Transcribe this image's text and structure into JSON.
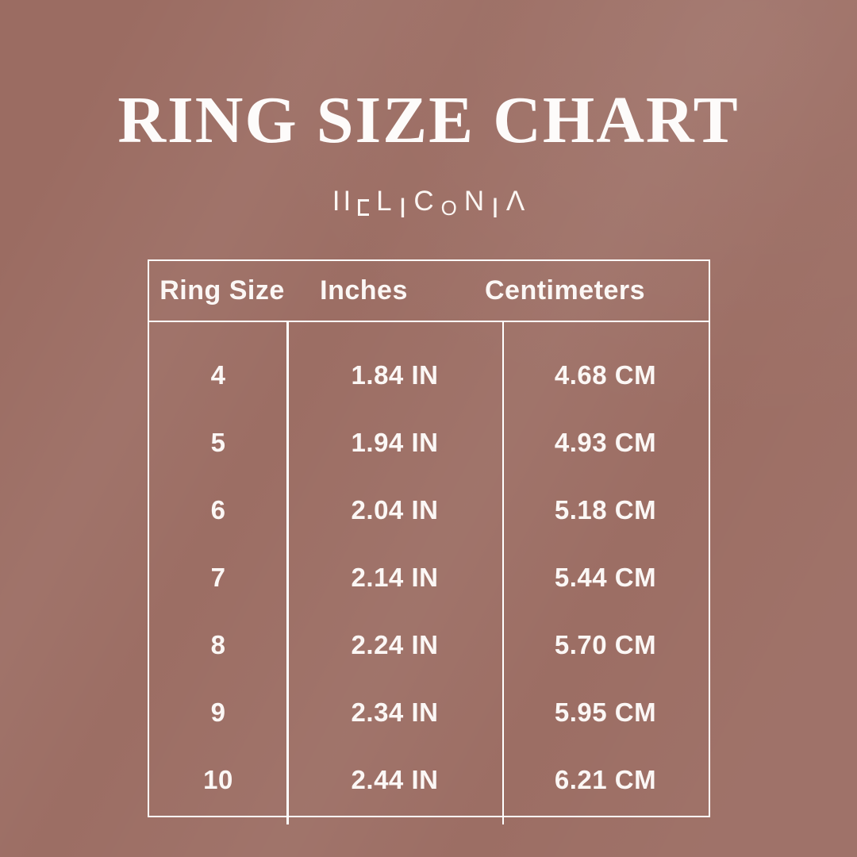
{
  "title": "RING SIZE CHART",
  "brand": {
    "name": "HELICONIA",
    "glyphs": [
      {
        "char": "I",
        "pos": "up",
        "gapAfter": 4
      },
      {
        "char": "I",
        "pos": "up"
      },
      {
        "char": "E",
        "pos": "down",
        "shape": "bracket"
      },
      {
        "char": "L",
        "pos": "up"
      },
      {
        "char": "I",
        "pos": "down"
      },
      {
        "char": "C",
        "pos": "up"
      },
      {
        "char": "O",
        "pos": "down",
        "shape": "small"
      },
      {
        "char": "N",
        "pos": "up"
      },
      {
        "char": "I",
        "pos": "down"
      },
      {
        "char": "Λ",
        "pos": "up"
      }
    ]
  },
  "chart_data": {
    "type": "table",
    "title": "RING SIZE CHART",
    "columns": [
      "Ring Size",
      "Inches",
      "Centimeters"
    ],
    "rows": [
      [
        "4",
        "1.84 IN",
        "4.68 CM"
      ],
      [
        "5",
        "1.94 IN",
        "4.93 CM"
      ],
      [
        "6",
        "2.04 IN",
        "5.18 CM"
      ],
      [
        "7",
        "2.14 IN",
        "5.44 CM"
      ],
      [
        "8",
        "2.24 IN",
        "5.70 CM"
      ],
      [
        "9",
        "2.34 IN",
        "5.95 CM"
      ],
      [
        "10",
        "2.44 IN",
        "6.21 CM"
      ]
    ],
    "numeric": {
      "ring_sizes": [
        4,
        5,
        6,
        7,
        8,
        9,
        10
      ],
      "inches": [
        1.84,
        1.94,
        2.04,
        2.14,
        2.24,
        2.34,
        2.44
      ],
      "centimeters": [
        4.68,
        4.93,
        5.18,
        5.44,
        5.7,
        5.95,
        6.21
      ]
    }
  },
  "colors": {
    "background": "#9B6C62",
    "text": "#FBF7F5",
    "border": "#FFFFFF"
  }
}
